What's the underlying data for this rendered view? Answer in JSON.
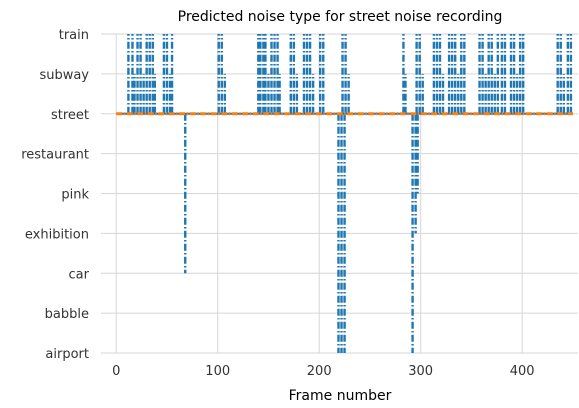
{
  "chart_data": {
    "type": "line",
    "title": "Predicted noise type for street noise recording",
    "xlabel": "Frame number",
    "ylabel": "",
    "categories": [
      "airport",
      "babble",
      "car",
      "exhibition",
      "pink",
      "restaurant",
      "street",
      "subway",
      "train"
    ],
    "xlim": [
      -15,
      455
    ],
    "xticks": [
      0,
      100,
      200,
      300,
      400
    ],
    "grid": true,
    "legend": "none",
    "colors": {
      "predicted": "#1f77b4",
      "true": "#ff7f0e"
    },
    "series": [
      {
        "key": "predicted",
        "label_category": "street",
        "excursions": [
          {
            "x": 12,
            "to": "train"
          },
          {
            "x": 16,
            "to": "train"
          },
          {
            "x": 18,
            "to": "subway"
          },
          {
            "x": 21,
            "to": "train"
          },
          {
            "x": 24,
            "to": "train"
          },
          {
            "x": 27,
            "to": "subway"
          },
          {
            "x": 30,
            "to": "train"
          },
          {
            "x": 33,
            "to": "train"
          },
          {
            "x": 36,
            "to": "train"
          },
          {
            "x": 38,
            "to": "subway"
          },
          {
            "x": 47,
            "to": "train"
          },
          {
            "x": 50,
            "to": "train"
          },
          {
            "x": 53,
            "to": "subway"
          },
          {
            "x": 55,
            "to": "train"
          },
          {
            "x": 68,
            "to": "car"
          },
          {
            "x": 101,
            "to": "train"
          },
          {
            "x": 104,
            "to": "train"
          },
          {
            "x": 107,
            "to": "subway"
          },
          {
            "x": 140,
            "to": "train"
          },
          {
            "x": 142,
            "to": "train"
          },
          {
            "x": 145,
            "to": "train"
          },
          {
            "x": 147,
            "to": "train"
          },
          {
            "x": 150,
            "to": "subway"
          },
          {
            "x": 153,
            "to": "train"
          },
          {
            "x": 156,
            "to": "train"
          },
          {
            "x": 159,
            "to": "train"
          },
          {
            "x": 161,
            "to": "subway"
          },
          {
            "x": 172,
            "to": "train"
          },
          {
            "x": 175,
            "to": "train"
          },
          {
            "x": 178,
            "to": "subway"
          },
          {
            "x": 185,
            "to": "train"
          },
          {
            "x": 188,
            "to": "train"
          },
          {
            "x": 191,
            "to": "train"
          },
          {
            "x": 194,
            "to": "subway"
          },
          {
            "x": 201,
            "to": "train"
          },
          {
            "x": 204,
            "to": "train"
          },
          {
            "x": 219,
            "to": "airport"
          },
          {
            "x": 222,
            "to": "airport"
          },
          {
            "x": 225,
            "to": "airport"
          },
          {
            "x": 223,
            "to": "train"
          },
          {
            "x": 226,
            "to": "train"
          },
          {
            "x": 229,
            "to": "subway"
          },
          {
            "x": 283,
            "to": "train"
          },
          {
            "x": 285,
            "to": "subway"
          },
          {
            "x": 292,
            "to": "airport"
          },
          {
            "x": 295,
            "to": "exhibition"
          },
          {
            "x": 297,
            "to": "pink"
          },
          {
            "x": 296,
            "to": "train"
          },
          {
            "x": 299,
            "to": "train"
          },
          {
            "x": 302,
            "to": "subway"
          },
          {
            "x": 313,
            "to": "train"
          },
          {
            "x": 316,
            "to": "train"
          },
          {
            "x": 319,
            "to": "train"
          },
          {
            "x": 322,
            "to": "subway"
          },
          {
            "x": 328,
            "to": "train"
          },
          {
            "x": 331,
            "to": "train"
          },
          {
            "x": 334,
            "to": "train"
          },
          {
            "x": 337,
            "to": "subway"
          },
          {
            "x": 340,
            "to": "train"
          },
          {
            "x": 343,
            "to": "train"
          },
          {
            "x": 358,
            "to": "train"
          },
          {
            "x": 361,
            "to": "train"
          },
          {
            "x": 364,
            "to": "subway"
          },
          {
            "x": 367,
            "to": "train"
          },
          {
            "x": 370,
            "to": "train"
          },
          {
            "x": 373,
            "to": "subway"
          },
          {
            "x": 376,
            "to": "train"
          },
          {
            "x": 380,
            "to": "train"
          },
          {
            "x": 383,
            "to": "train"
          },
          {
            "x": 389,
            "to": "train"
          },
          {
            "x": 392,
            "to": "train"
          },
          {
            "x": 395,
            "to": "subway"
          },
          {
            "x": 398,
            "to": "train"
          },
          {
            "x": 401,
            "to": "train"
          },
          {
            "x": 435,
            "to": "train"
          },
          {
            "x": 438,
            "to": "train"
          },
          {
            "x": 441,
            "to": "subway"
          },
          {
            "x": 445,
            "to": "train"
          },
          {
            "x": 448,
            "to": "train"
          }
        ]
      },
      {
        "key": "true",
        "constant_category": "street",
        "x_range": [
          0,
          450
        ]
      }
    ]
  }
}
